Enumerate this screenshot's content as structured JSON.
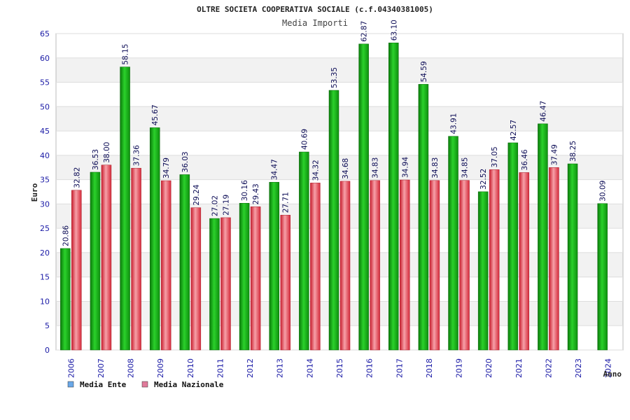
{
  "chart_data": {
    "type": "bar",
    "title": "OLTRE SOCIETA COOPERATIVA SOCIALE (c.f.04340381005)",
    "subtitle": "Media Importi",
    "xlabel": "Anno",
    "ylabel": "Euro",
    "ylim": [
      0,
      65
    ],
    "yticks": [
      0,
      5,
      10,
      15,
      20,
      25,
      30,
      35,
      40,
      45,
      50,
      55,
      60,
      65
    ],
    "grid": true,
    "legend_position": "bottom-left",
    "categories": [
      "2006",
      "2007",
      "2008",
      "2009",
      "2010",
      "2011",
      "2012",
      "2013",
      "2014",
      "2015",
      "2016",
      "2017",
      "2018",
      "2019",
      "2020",
      "2021",
      "2022",
      "2023",
      "2024"
    ],
    "series": [
      {
        "name": "Media Ente",
        "color": "#1fb51f",
        "legend_color": "#6aa8e8",
        "values": [
          20.86,
          36.53,
          58.15,
          45.67,
          36.03,
          27.02,
          30.16,
          34.47,
          40.69,
          53.35,
          62.87,
          63.1,
          54.59,
          43.91,
          32.52,
          42.57,
          46.47,
          38.25,
          30.09
        ],
        "labels": [
          "20.86",
          "36.53",
          "58.15",
          "45.67",
          "36.03",
          "27.02",
          "30.16",
          "34.47",
          "40.69",
          "53.35",
          "62.87",
          "63.10",
          "54.59",
          "43.91",
          "32.52",
          "42.57",
          "46.47",
          "38.25",
          "30.09"
        ]
      },
      {
        "name": "Media Nazionale",
        "color": "#e83a4a",
        "legend_color": "#e07a9a",
        "values": [
          32.82,
          38.0,
          37.36,
          34.79,
          29.24,
          27.19,
          29.43,
          27.71,
          34.32,
          34.68,
          34.83,
          34.94,
          34.83,
          34.85,
          37.05,
          36.46,
          37.49,
          null,
          null
        ],
        "labels": [
          "32.82",
          "38.00",
          "37.36",
          "34.79",
          "29.24",
          "27.19",
          "29.43",
          "27.71",
          "34.32",
          "34.68",
          "34.83",
          "34.94",
          "34.83",
          "34.85",
          "37.05",
          "36.46",
          "37.49",
          null,
          null
        ]
      }
    ]
  }
}
